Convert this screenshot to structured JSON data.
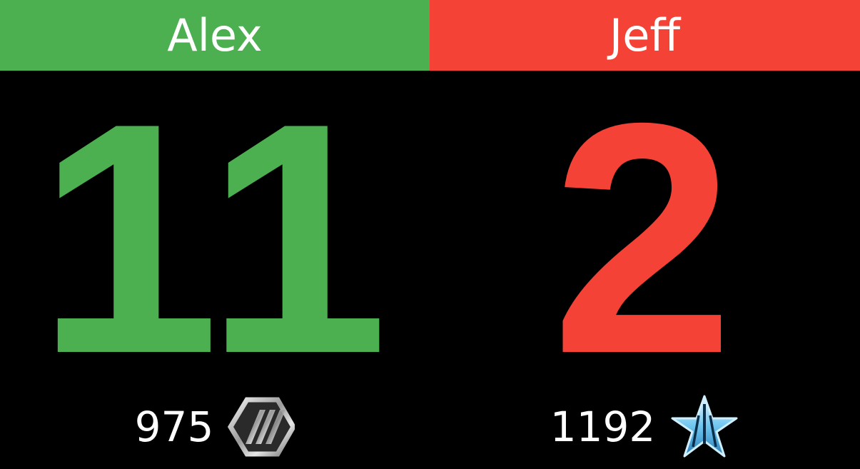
{
  "players": [
    {
      "name": "Alex",
      "score": "11",
      "rating": "975",
      "rank_icon": "silver-hexagon-rank-icon",
      "color": "#4caf50"
    },
    {
      "name": "Jeff",
      "score": "2",
      "rating": "1192",
      "rank_icon": "blue-star-rank-icon",
      "color": "#f44336"
    }
  ],
  "colors": {
    "background": "#000000",
    "text": "#ffffff",
    "left_player": "#4caf50",
    "right_player": "#f44336"
  }
}
